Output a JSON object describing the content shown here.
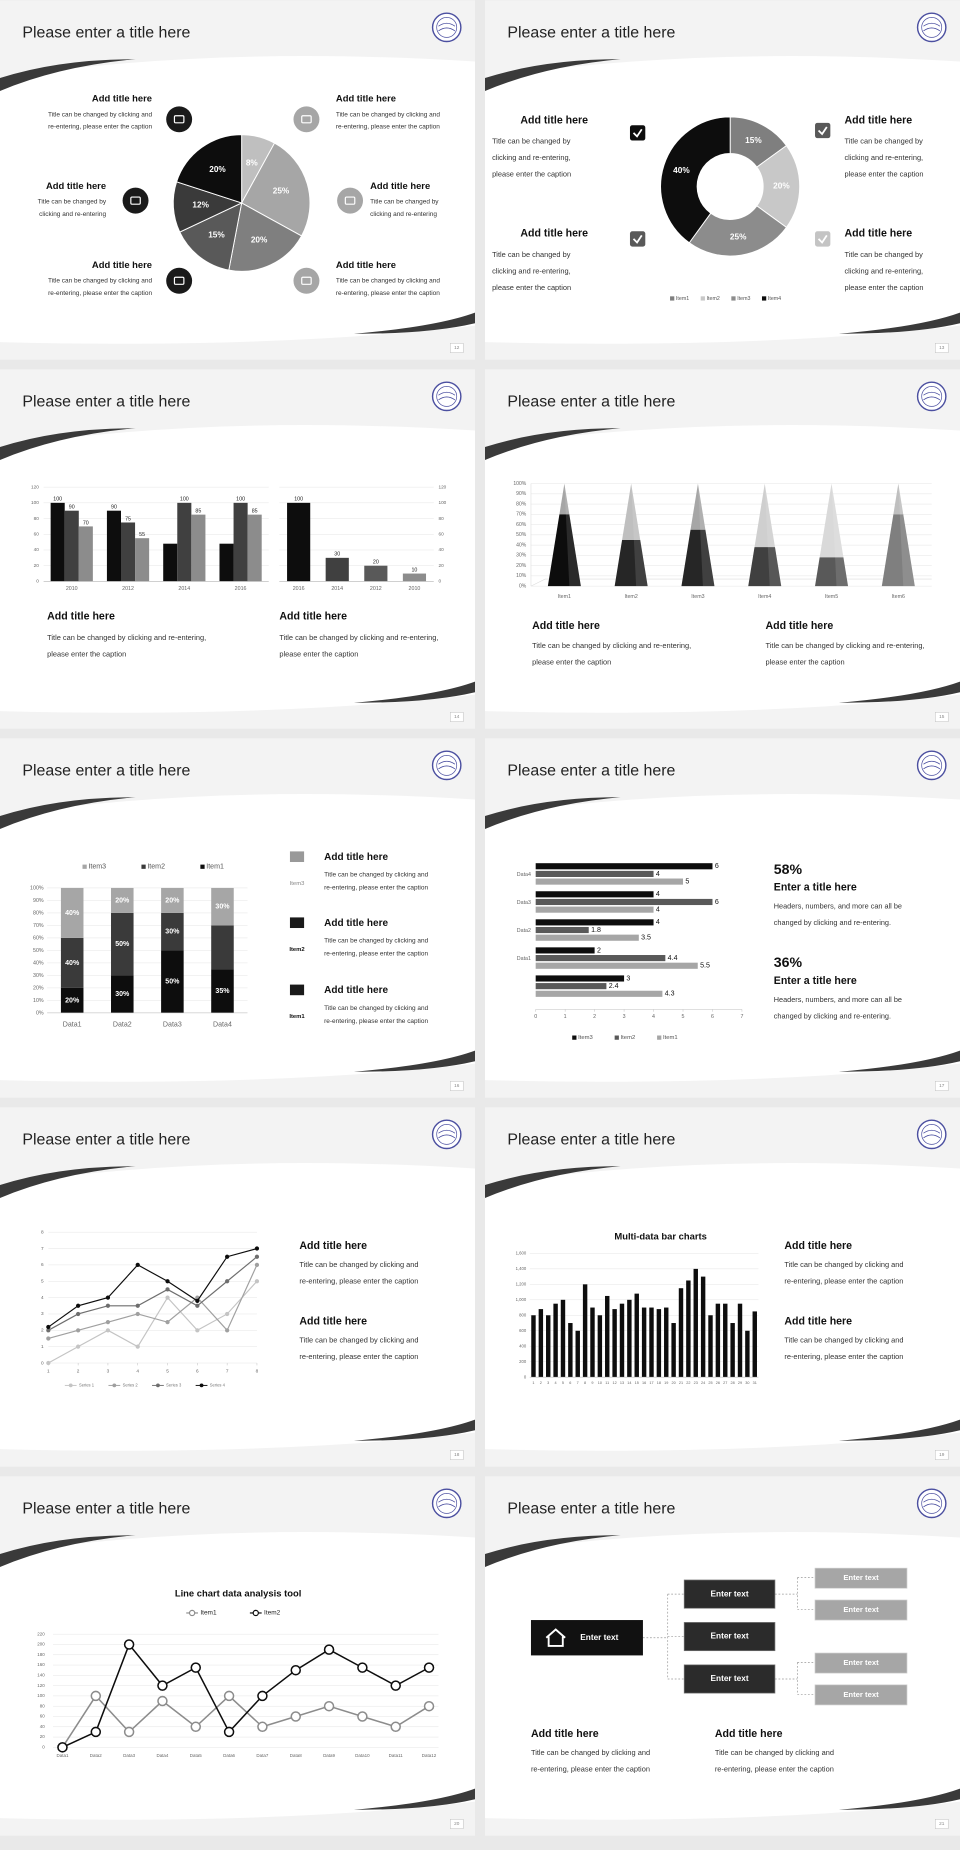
{
  "slides": [
    {
      "title": "Please enter a title here",
      "page": 12,
      "chart": {
        "type": "pie",
        "values": [
          8,
          25,
          20,
          15,
          12,
          20
        ],
        "value_labels": [
          "8%",
          "25%",
          "20%",
          "15%",
          "12%",
          "20%"
        ],
        "colors": [
          "#bfbfbf",
          "#a6a6a6",
          "#7f7f7f",
          "#595959",
          "#3a3a3a",
          "#0d0d0d"
        ]
      },
      "blocks": [
        {
          "title": "Add title here",
          "lines": [
            "Title can be changed by clicking and",
            "re-entering, please enter the caption"
          ]
        },
        {
          "title": "Add title here",
          "lines": [
            "Title can be changed by",
            "clicking and re-entering"
          ]
        },
        {
          "title": "Add title here",
          "lines": [
            "Title can be changed by clicking and",
            "re-entering, please enter the caption"
          ]
        },
        {
          "title": "Add title here",
          "lines": [
            "Title can be changed by clicking and",
            "re-entering, please enter the caption"
          ]
        },
        {
          "title": "Add title here",
          "lines": [
            "Title can be changed by",
            "clicking and re-entering"
          ]
        },
        {
          "title": "Add title here",
          "lines": [
            "Title can be changed by clicking and",
            "re-entering, please enter the caption"
          ]
        }
      ]
    },
    {
      "title": "Please enter a title here",
      "page": 13,
      "chart": {
        "type": "donut",
        "categories": [
          "Item1",
          "Item2",
          "Item3",
          "Item4"
        ],
        "values": [
          15,
          20,
          25,
          40
        ],
        "value_labels": [
          "15%",
          "20%",
          "25%",
          "40%"
        ],
        "colors": [
          "#7f7f7f",
          "#c8c8c8",
          "#8c8c8c",
          "#0d0d0d"
        ]
      },
      "blocks": [
        {
          "title": "Add title here",
          "lines": [
            "Title can be changed by",
            "clicking and re-entering,",
            "please enter the caption"
          ]
        },
        {
          "title": "Add title here",
          "lines": [
            "Title can be changed by",
            "clicking and re-entering,",
            "please enter the caption"
          ]
        },
        {
          "title": "Add title here",
          "lines": [
            "Title can be changed by",
            "clicking and re-entering,",
            "please enter the caption"
          ]
        },
        {
          "title": "Add title here",
          "lines": [
            "Title can be changed by",
            "clicking and re-entering,",
            "please enter the caption"
          ]
        }
      ]
    },
    {
      "title": "Please enter a title here",
      "page": 14,
      "charts": [
        {
          "type": "bar",
          "categories": [
            "2010",
            "2012",
            "2014",
            "2016"
          ],
          "ylim": [
            0,
            120
          ],
          "yticks": [
            0,
            20,
            40,
            60,
            80,
            100,
            120
          ],
          "grid": true,
          "data_labels": true,
          "series": [
            {
              "color": "#0d0d0d",
              "values": [
                100,
                90,
                48,
                48
              ],
              "value_labels": [
                "100",
                "90",
                null,
                null
              ]
            },
            {
              "color": "#404040",
              "values": [
                90,
                75,
                100,
                100
              ]
            },
            {
              "color": "#8c8c8c",
              "values": [
                70,
                55,
                85,
                85
              ]
            }
          ]
        },
        {
          "type": "bar",
          "categories": [
            "2016",
            "2014",
            "2012",
            "2010"
          ],
          "ylim": [
            0,
            120
          ],
          "yticks": [
            0,
            20,
            40,
            60,
            80,
            100,
            120
          ],
          "grid": true,
          "data_labels": true,
          "series": [
            {
              "colors": [
                "#0d0d0d",
                "#404040",
                "#595959",
                "#8c8c8c"
              ],
              "values": [
                100,
                30,
                20,
                10
              ]
            }
          ]
        }
      ],
      "blocks": [
        {
          "title": "Add title here",
          "lines": [
            "Title can be changed by clicking and re-entering,",
            "please enter the caption"
          ]
        },
        {
          "title": "Add title here",
          "lines": [
            "Title can be changed by clicking and re-entering,",
            "please enter the caption"
          ]
        }
      ]
    },
    {
      "title": "Please enter a title here",
      "page": 15,
      "chart": {
        "type": "pyramid",
        "categories": [
          "Item1",
          "Item2",
          "Item3",
          "Item4",
          "Item5",
          "Item6"
        ],
        "values": [
          70,
          45,
          55,
          38,
          28,
          70
        ],
        "colors": [
          "#0d0d0d",
          "#262626",
          "#262626",
          "#404040",
          "#595959",
          "#7f7f7f"
        ],
        "cap_colors": [
          "#a6a6a6",
          "#bfbfbf",
          "#a6a6a6",
          "#cfcfcf",
          "#d9d9d9",
          "#bfbfbf"
        ],
        "ylim": [
          0,
          100
        ],
        "yticks": [
          {
            "value": 0,
            "label": "0%"
          },
          {
            "value": 10,
            "label": "10%"
          },
          {
            "value": 20,
            "label": "20%"
          },
          {
            "value": 30,
            "label": "30%"
          },
          {
            "value": 40,
            "label": "40%"
          },
          {
            "value": 50,
            "label": "50%"
          },
          {
            "value": 60,
            "label": "60%"
          },
          {
            "value": 70,
            "label": "70%"
          },
          {
            "value": 80,
            "label": "80%"
          },
          {
            "value": 90,
            "label": "90%"
          },
          {
            "value": 100,
            "label": "100%"
          }
        ],
        "grid": true
      },
      "blocks": [
        {
          "title": "Add title here",
          "lines": [
            "Title can be changed by clicking and re-entering,",
            "please enter the caption"
          ]
        },
        {
          "title": "Add title here",
          "lines": [
            "Title can be changed by clicking and re-entering,",
            "please enter the caption"
          ]
        }
      ]
    },
    {
      "title": "Please enter a title here",
      "page": 16,
      "chart": {
        "type": "stacked-bar",
        "categories": [
          "Data1",
          "Data2",
          "Data3",
          "Data4"
        ],
        "ylim": [
          0,
          100
        ],
        "yticks": [
          {
            "value": 0,
            "label": "0%"
          },
          {
            "value": 10,
            "label": "10%"
          },
          {
            "value": 20,
            "label": "20%"
          },
          {
            "value": 30,
            "label": "30%"
          },
          {
            "value": 40,
            "label": "40%"
          },
          {
            "value": 50,
            "label": "50%"
          },
          {
            "value": 60,
            "label": "60%"
          },
          {
            "value": 70,
            "label": "70%"
          },
          {
            "value": 80,
            "label": "80%"
          },
          {
            "value": 90,
            "label": "90%"
          },
          {
            "value": 100,
            "label": "100%"
          }
        ],
        "grid": true,
        "data_labels": true,
        "series": [
          {
            "name": "Item1",
            "color": "#0d0d0d",
            "values": [
              20,
              30,
              50,
              35
            ],
            "value_labels": [
              "20%",
              "30%",
              "50%",
              "35%"
            ]
          },
          {
            "name": "Item2",
            "color": "#3a3a3a",
            "values": [
              40,
              50,
              30,
              35
            ],
            "value_labels": [
              "40%",
              "50%",
              "30%",
              null
            ]
          },
          {
            "name": "Item3",
            "color": "#a6a6a6",
            "values": [
              40,
              20,
              20,
              30
            ],
            "value_labels": [
              "40%",
              "20%",
              "20%",
              "30%"
            ]
          }
        ]
      },
      "blocks": [
        {
          "icon_label": "Item3",
          "title": "Add title here",
          "lines": [
            "Title can be changed by clicking and",
            "re-entering, please enter the caption"
          ]
        },
        {
          "icon_label": "Item2",
          "title": "Add title here",
          "lines": [
            "Title can be changed by clicking and",
            "re-entering, please enter the caption"
          ]
        },
        {
          "icon_label": "Item1",
          "title": "Add title here",
          "lines": [
            "Title can be changed by clicking and",
            "re-entering, please enter the caption"
          ]
        }
      ]
    },
    {
      "title": "Please enter a title here",
      "page": 17,
      "chart": {
        "type": "hbar",
        "categories": [
          "Data4",
          "Data3",
          "Data2",
          "Data1",
          null
        ],
        "xlim": [
          0,
          7
        ],
        "xticks": [
          0,
          1,
          2,
          3,
          4,
          5,
          6,
          7
        ],
        "data_labels": true,
        "series": [
          {
            "name": "Item3",
            "color": "#0d0d0d",
            "values": [
              6,
              4,
              4,
              2,
              3
            ]
          },
          {
            "name": "Item2",
            "color": "#595959",
            "values": [
              4,
              6,
              1.8,
              4.4,
              2.4
            ]
          },
          {
            "name": "Item1",
            "color": "#a6a6a6",
            "values": [
              5,
              4,
              3.5,
              5.5,
              4.3
            ]
          }
        ]
      },
      "stats": [
        {
          "value": "58%",
          "title": "Enter a title here",
          "lines": [
            "Headers, numbers, and more can all be",
            "changed by clicking and re-entering."
          ]
        },
        {
          "value": "36%",
          "title": "Enter a title here",
          "lines": [
            "Headers, numbers, and more can all be",
            "changed by clicking and re-entering."
          ]
        }
      ]
    },
    {
      "title": "Please enter a title here",
      "page": 18,
      "chart": {
        "type": "line",
        "x": [
          1,
          2,
          3,
          4,
          5,
          6,
          7,
          8
        ],
        "xlim": [
          1,
          8
        ],
        "xticks": [
          1,
          2,
          3,
          4,
          5,
          6,
          7,
          8
        ],
        "ylim": [
          0,
          8
        ],
        "yticks": [
          0,
          1,
          2,
          3,
          4,
          5,
          6,
          7,
          8
        ],
        "grid": true,
        "series": [
          {
            "name": "Series 1",
            "color": "#c4c4c4",
            "values": [
              0,
              1,
              2,
              1,
              4,
              2,
              3,
              5
            ]
          },
          {
            "name": "Series 2",
            "color": "#a0a0a0",
            "values": [
              1.5,
              2,
              2.5,
              3,
              2.5,
              4,
              2,
              6
            ]
          },
          {
            "name": "Series 3",
            "color": "#6e6e6e",
            "values": [
              2,
              3,
              3.5,
              3.5,
              4.5,
              3.5,
              5,
              6.5
            ]
          },
          {
            "name": "Series 4",
            "color": "#0d0d0d",
            "values": [
              2.2,
              3.5,
              4,
              6,
              5,
              3.8,
              6.5,
              7
            ]
          }
        ]
      },
      "blocks": [
        {
          "title": "Add title here",
          "lines": [
            "Title can be changed by clicking and",
            "re-entering, please enter the caption"
          ]
        },
        {
          "title": "Add title here",
          "lines": [
            "Title can be changed by clicking and",
            "re-entering, please enter the caption"
          ]
        }
      ]
    },
    {
      "title": "Please enter a title here",
      "page": 19,
      "chart": {
        "type": "bar",
        "title": "Multi-data bar charts",
        "categories": [
          "1",
          "2",
          "3",
          "4",
          "5",
          "6",
          "7",
          "8",
          "9",
          "10",
          "11",
          "12",
          "13",
          "14",
          "15",
          "16",
          "17",
          "18",
          "19",
          "20",
          "21",
          "22",
          "23",
          "24",
          "25",
          "26",
          "27",
          "28",
          "29",
          "30",
          "31"
        ],
        "ylim": [
          0,
          1600
        ],
        "yticks": [
          0,
          200,
          400,
          600,
          800,
          {
            "value": 1000,
            "label": "1,000"
          },
          {
            "value": 1200,
            "label": "1,200"
          },
          {
            "value": 1400,
            "label": "1,400"
          },
          {
            "value": 1600,
            "label": "1,600"
          }
        ],
        "grid": true,
        "series": [
          {
            "color": "#0d0d0d",
            "values": [
              800,
              880,
              800,
              950,
              1000,
              700,
              600,
              1200,
              900,
              800,
              1050,
              880,
              950,
              1000,
              1080,
              900,
              900,
              880,
              900,
              700,
              1150,
              1250,
              1400,
              1300,
              800,
              950,
              950,
              700,
              950,
              600,
              850
            ]
          }
        ]
      },
      "blocks": [
        {
          "title": "Add title here",
          "lines": [
            "Title can be changed by clicking and",
            "re-entering, please enter the caption"
          ]
        },
        {
          "title": "Add title here",
          "lines": [
            "Title can be changed by clicking and",
            "re-entering, please enter the caption"
          ]
        }
      ]
    },
    {
      "title": "Please enter a title here",
      "page": 20,
      "chart": {
        "type": "line",
        "title": "Line chart data analysis tool",
        "categories": [
          "Data1",
          "Data2",
          "Data3",
          "Data4",
          "Data5",
          "Data6",
          "Data7",
          "Data8",
          "Data9",
          "Data10",
          "Data11",
          "Data12"
        ],
        "ylim": [
          0,
          220
        ],
        "yticks": [
          0,
          20,
          40,
          60,
          80,
          100,
          120,
          140,
          160,
          180,
          200,
          220
        ],
        "grid": true,
        "series": [
          {
            "name": "Item1",
            "color": "#8c8c8c",
            "values": [
              0,
              100,
              30,
              90,
              40,
              100,
              40,
              60,
              80,
              60,
              40,
              80
            ]
          },
          {
            "name": "Item2",
            "color": "#0d0d0d",
            "values": [
              0,
              30,
              200,
              120,
              155,
              30,
              100,
              150,
              190,
              155,
              120,
              155
            ]
          }
        ]
      }
    },
    {
      "title": "Please enter a title here",
      "page": 21,
      "diagram": {
        "root": "Enter text",
        "branches": [
          "Enter text",
          "Enter text",
          "Enter text"
        ],
        "leaves": [
          "Enter text",
          "Enter text",
          "Enter text",
          "Enter text"
        ]
      },
      "blocks": [
        {
          "title": "Add title here",
          "lines": [
            "Title can be changed by clicking and",
            "re-entering, please enter the caption"
          ]
        },
        {
          "title": "Add title here",
          "lines": [
            "Title can be changed by clicking and",
            "re-entering, please enter the caption"
          ]
        }
      ]
    }
  ]
}
